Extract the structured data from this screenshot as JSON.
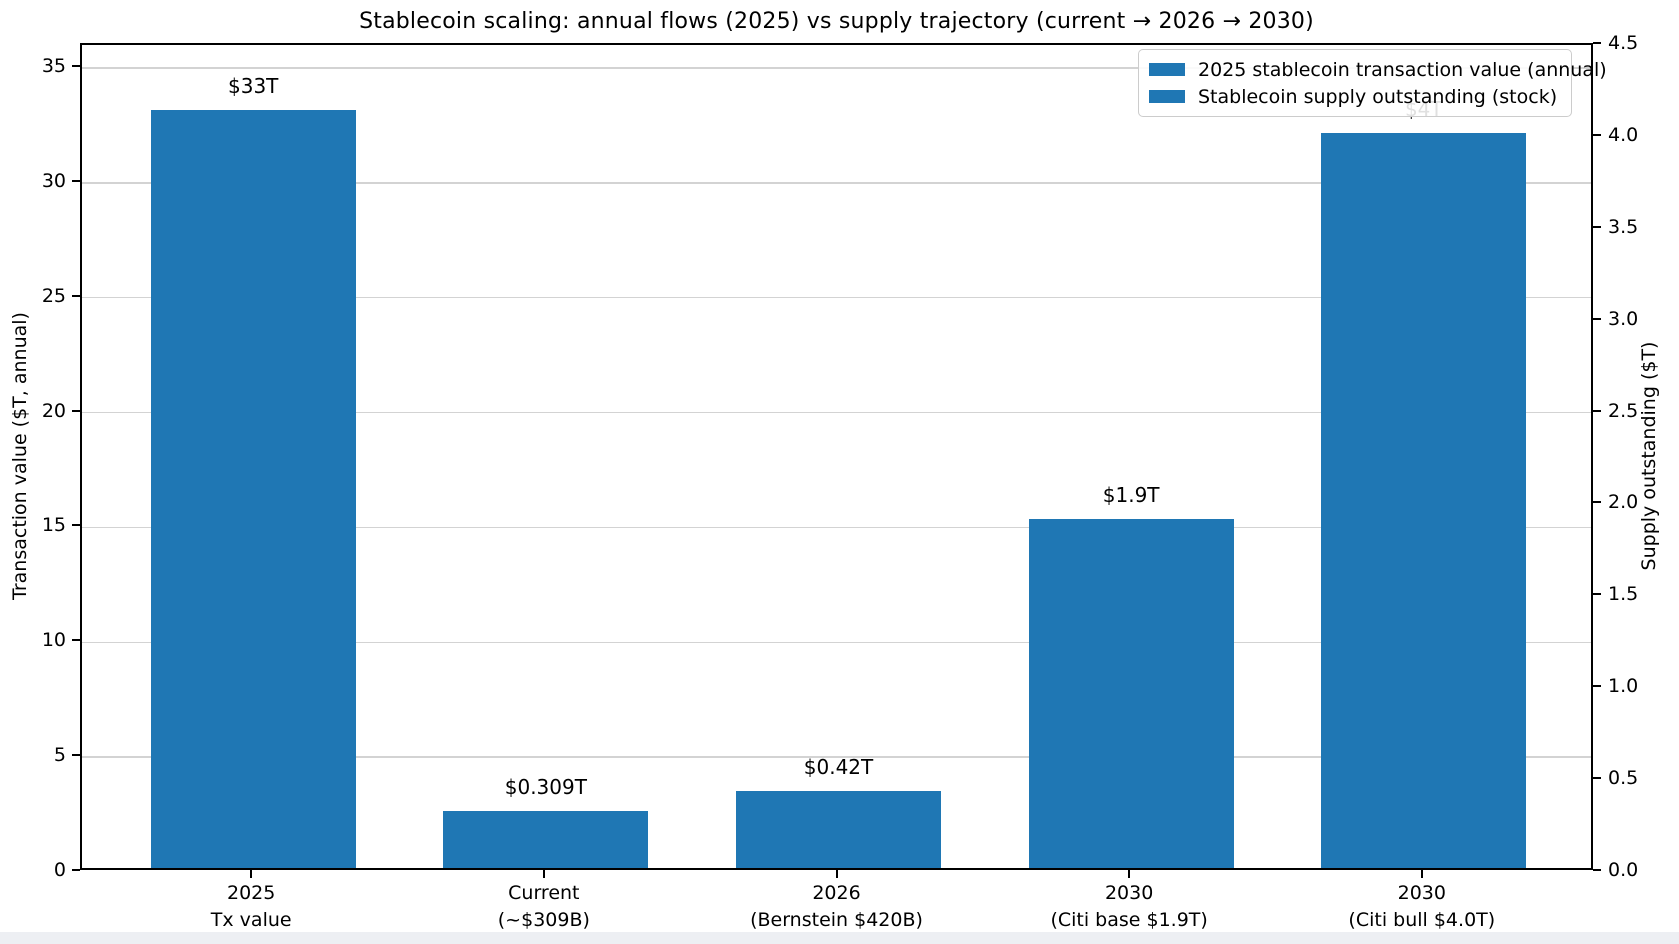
{
  "chart_data": {
    "type": "bar",
    "title": "Stablecoin scaling: annual flows (2025) vs supply trajectory (current → 2026 → 2030)",
    "categories": [
      [
        "2025",
        "Tx value"
      ],
      [
        "Current",
        "(~$309B)"
      ],
      [
        "2026",
        "(Bernstein $420B)"
      ],
      [
        "2030",
        "(Citi base $1.9T)"
      ],
      [
        "2030",
        "(Citi bull $4.0T)"
      ]
    ],
    "bars": [
      {
        "category": "2025 Tx value",
        "axis": "left",
        "value": 33,
        "label": "$33T"
      },
      {
        "category": "Current (~$309B)",
        "axis": "right",
        "value": 0.309,
        "label": "$0.309T"
      },
      {
        "category": "2026 (Bernstein $420B)",
        "axis": "right",
        "value": 0.42,
        "label": "$0.42T"
      },
      {
        "category": "2030 (Citi base $1.9T)",
        "axis": "right",
        "value": 1.9,
        "label": "$1.9T"
      },
      {
        "category": "2030 (Citi bull $4.0T)",
        "axis": "right",
        "value": 4.0,
        "label": "$4T"
      }
    ],
    "left_axis": {
      "label": "Transaction value ($T, annual)",
      "ticks": [
        0,
        5,
        10,
        15,
        20,
        25,
        30,
        35
      ],
      "ylim": [
        0,
        36
      ]
    },
    "right_axis": {
      "label": "Supply outstanding ($T)",
      "ticks": [
        "0.0",
        "0.5",
        "1.0",
        "1.5",
        "2.0",
        "2.5",
        "3.0",
        "3.5",
        "4.0",
        "4.5"
      ],
      "ylim": [
        0,
        4.5
      ]
    },
    "legend": [
      "2025 stablecoin transaction value (annual)",
      "Stablecoin supply outstanding (stock)"
    ],
    "layout_hints": {
      "legend_position": "upper right",
      "grid": "horizontal, at left-axis ticks",
      "bar_color_all_series_same": true
    }
  },
  "colors": {
    "bar": "#1f77b4",
    "grid": "#d3d3d3",
    "spine": "#000000",
    "background": "#ffffff",
    "bottom_strip": "#edeff3"
  }
}
